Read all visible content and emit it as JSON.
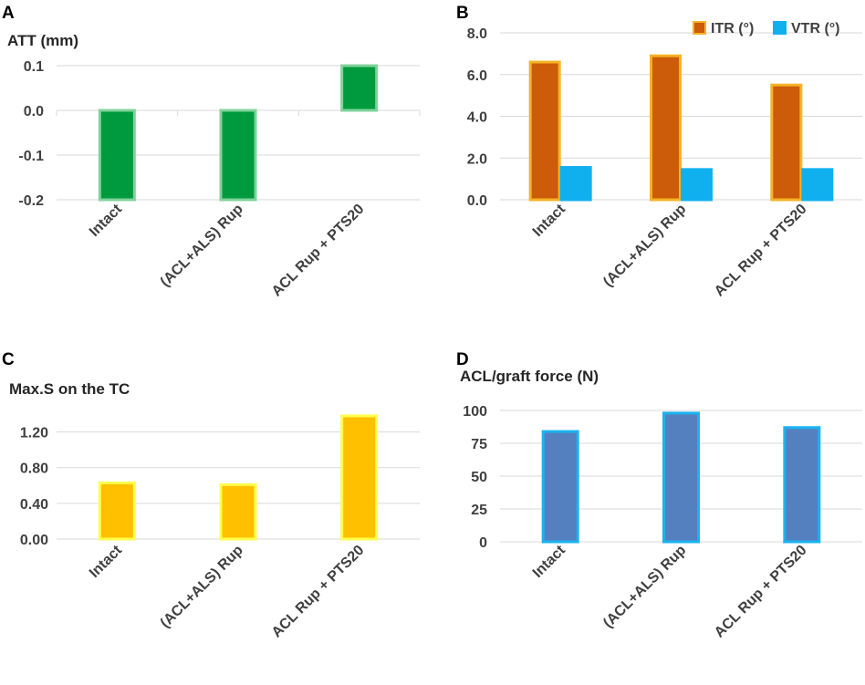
{
  "figure": {
    "panels": [
      "A",
      "B",
      "C",
      "D"
    ]
  },
  "chart_data": [
    {
      "panel": "A",
      "type": "bar",
      "title": "ATT (mm)",
      "categories": [
        "Intact",
        "(ACL+ALS) Rup",
        "ACL Rup + PTS20"
      ],
      "series": [
        {
          "name": "ATT (mm)",
          "values": [
            -0.2,
            -0.2,
            0.1
          ],
          "color": "#009a3e",
          "stroke": "#7fd39b"
        }
      ],
      "ylim": [
        -0.2,
        0.1
      ],
      "yticks": [
        0.1,
        0.0,
        -0.1,
        -0.2
      ],
      "ytick_labels": [
        "0.1",
        "0.0",
        "-0.1",
        "-0.2"
      ],
      "grid": true,
      "vertical_separators": true
    },
    {
      "panel": "B",
      "type": "bar",
      "title": "",
      "categories": [
        "Intact",
        "(ACL+ALS) Rup",
        "ACL Rup + PTS20"
      ],
      "series": [
        {
          "name": "ITR (°)",
          "values": [
            6.6,
            6.9,
            5.5
          ],
          "color": "#cc5b0a",
          "stroke": "#f5b326"
        },
        {
          "name": "VTR (°)",
          "values": [
            1.55,
            1.45,
            1.45
          ],
          "color": "#10b0ee",
          "stroke": "#10b0ee"
        }
      ],
      "legend": [
        "ITR (°)",
        "VTR (°)"
      ],
      "legend_position": "top-right",
      "ylim": [
        0,
        8
      ],
      "yticks": [
        8,
        6,
        4,
        2,
        0
      ],
      "ytick_labels": [
        "8.0",
        "6.0",
        "4.0",
        "2.0",
        "0.0"
      ],
      "grid": true
    },
    {
      "panel": "C",
      "type": "bar",
      "title": "Max.S on the TC",
      "categories": [
        "Intact",
        "(ACL+ALS) Rup",
        "ACL Rup + PTS20"
      ],
      "series": [
        {
          "name": "Max.S on the TC",
          "values": [
            0.63,
            0.61,
            1.38
          ],
          "color": "#ffc000",
          "stroke": "#ffff4d"
        }
      ],
      "ylim": [
        0,
        1.4
      ],
      "yticks": [
        1.2,
        0.8,
        0.4,
        0.0
      ],
      "ytick_labels": [
        "1.20",
        "0.80",
        "0.40",
        "0.00"
      ],
      "grid": true
    },
    {
      "panel": "D",
      "type": "bar",
      "title": "ACL/graft force (N)",
      "categories": [
        "Intact",
        "(ACL+ALS) Rup",
        "ACL Rup + PTS20"
      ],
      "series": [
        {
          "name": "ACL/graft force (N)",
          "values": [
            84,
            98,
            87
          ],
          "color": "#5580c0",
          "stroke": "#1ab3f0"
        }
      ],
      "ylim": [
        0,
        100
      ],
      "yticks": [
        100,
        75,
        50,
        25,
        0
      ],
      "ytick_labels": [
        "100",
        "75",
        "50",
        "25",
        "0"
      ],
      "grid": true
    }
  ]
}
